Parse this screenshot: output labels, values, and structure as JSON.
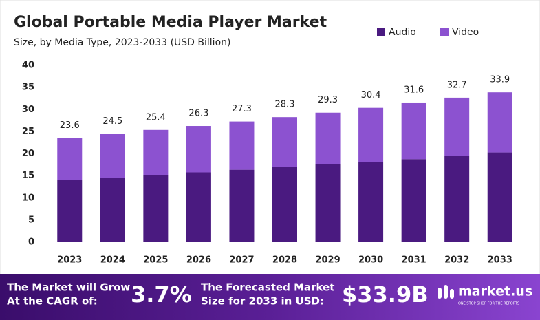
{
  "chart_data": {
    "type": "stacked_bar",
    "title": "Global Portable Media Player Market",
    "subtitle": "Size, by Media Type, 2023-2033 (USD Billion)",
    "categories": [
      "2023",
      "2024",
      "2025",
      "2026",
      "2027",
      "2028",
      "2029",
      "2030",
      "2031",
      "2032",
      "2033"
    ],
    "series": [
      {
        "name": "Audio",
        "color": "#4a1a80",
        "values": [
          14.1,
          14.6,
          15.2,
          15.8,
          16.4,
          17.0,
          17.6,
          18.2,
          18.8,
          19.5,
          20.3
        ]
      },
      {
        "name": "Video",
        "color": "#8c52d0",
        "values": [
          9.5,
          9.9,
          10.2,
          10.5,
          10.9,
          11.3,
          11.7,
          12.2,
          12.8,
          13.2,
          13.6
        ]
      }
    ],
    "totals": [
      23.6,
      24.5,
      25.4,
      26.3,
      27.3,
      28.3,
      29.3,
      30.4,
      31.6,
      32.7,
      33.9
    ],
    "ylim": [
      0,
      40
    ],
    "yticks": [
      0,
      5,
      10,
      15,
      20,
      25,
      30,
      35,
      40
    ],
    "grid": false,
    "legend": "top-right"
  },
  "footer": {
    "cagr_text": [
      "The Market will Grow",
      "At the CAGR of:"
    ],
    "cagr": "3.7%",
    "forecast_text": [
      "The Forecasted Market",
      "Size for 2033 in USD:"
    ],
    "forecast": "$33.9B",
    "brand": "market.us",
    "tagline": "ONE STOP SHOP FOR THE REPORTS"
  }
}
